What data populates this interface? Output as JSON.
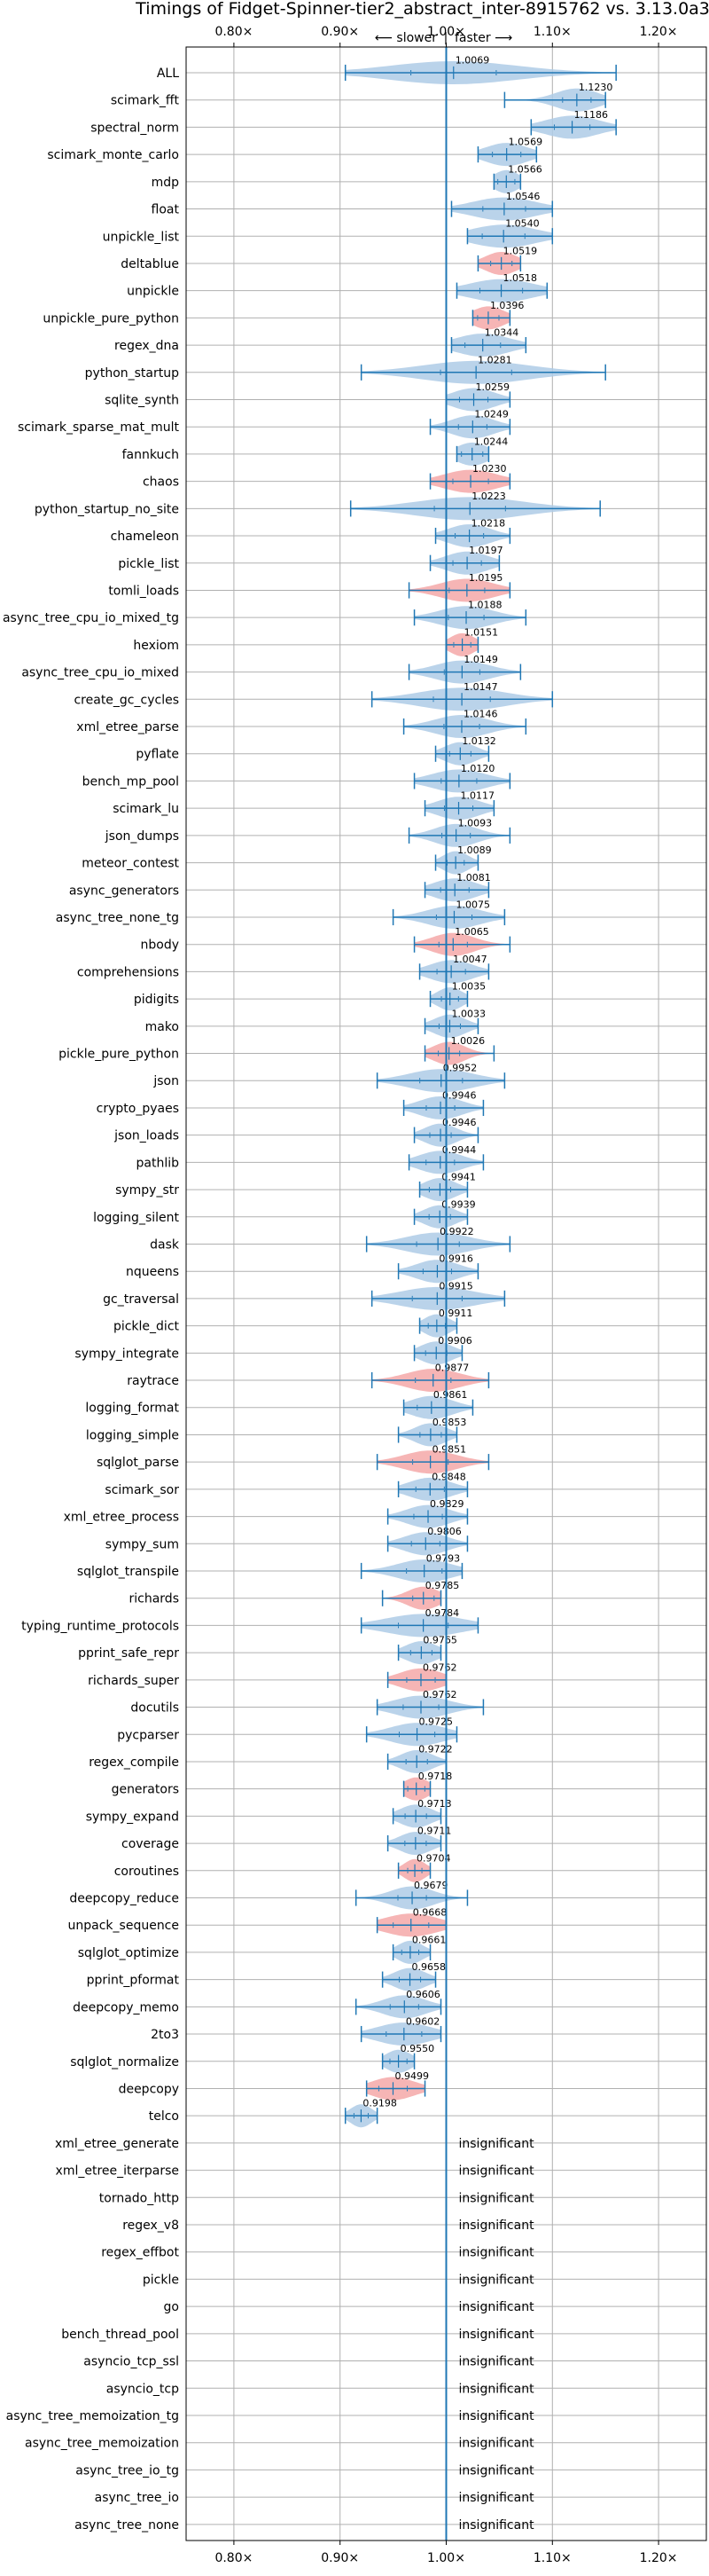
{
  "chart_data": {
    "type": "violin",
    "title": "Timings of Fidget-Spinner-tier2_abstract_inter-8915762 vs. 3.13.0a3+",
    "direction_labels": {
      "left": "⟵ slower",
      "separator": "|",
      "right": "faster ⟶"
    },
    "xlim": [
      0.755,
      1.245
    ],
    "x_ticks": [
      {
        "value": 0.8,
        "label": "0.80×"
      },
      {
        "value": 0.9,
        "label": "0.90×"
      },
      {
        "value": 1.0,
        "label": "1.00×"
      },
      {
        "value": 1.1,
        "label": "1.10×"
      },
      {
        "value": 1.2,
        "label": "1.20×"
      }
    ],
    "grid": true,
    "reference_line": 1.0,
    "colors": {
      "normal": "#aecbe6",
      "highlight": "#f4a8a8",
      "line": "#1f77b4"
    },
    "insignificant_text": "insignificant",
    "benchmarks": [
      {
        "name": "ALL",
        "mean": 1.0069,
        "label": "1.0069",
        "min": 0.905,
        "max": 1.16,
        "spread": 0.06,
        "highlight": false
      },
      {
        "name": "scimark_fft",
        "mean": 1.123,
        "label": "1.1230",
        "min": 1.055,
        "max": 1.15,
        "spread": 0.02,
        "highlight": false
      },
      {
        "name": "spectral_norm",
        "mean": 1.1186,
        "label": "1.1186",
        "min": 1.08,
        "max": 1.16,
        "spread": 0.025,
        "highlight": false
      },
      {
        "name": "scimark_monte_carlo",
        "mean": 1.0569,
        "label": "1.0569",
        "min": 1.03,
        "max": 1.085,
        "spread": 0.02,
        "highlight": false
      },
      {
        "name": "mdp",
        "mean": 1.0566,
        "label": "1.0566",
        "min": 1.045,
        "max": 1.07,
        "spread": 0.012,
        "highlight": false
      },
      {
        "name": "float",
        "mean": 1.0546,
        "label": "1.0546",
        "min": 1.005,
        "max": 1.1,
        "spread": 0.03,
        "highlight": false
      },
      {
        "name": "unpickle_list",
        "mean": 1.054,
        "label": "1.0540",
        "min": 1.02,
        "max": 1.1,
        "spread": 0.03,
        "highlight": false
      },
      {
        "name": "deltablue",
        "mean": 1.0519,
        "label": "1.0519",
        "min": 1.03,
        "max": 1.07,
        "spread": 0.015,
        "highlight": true
      },
      {
        "name": "unpickle",
        "mean": 1.0518,
        "label": "1.0518",
        "min": 1.01,
        "max": 1.095,
        "spread": 0.03,
        "highlight": false
      },
      {
        "name": "unpickle_pure_python",
        "mean": 1.0396,
        "label": "1.0396",
        "min": 1.025,
        "max": 1.06,
        "spread": 0.015,
        "highlight": true
      },
      {
        "name": "regex_dna",
        "mean": 1.0344,
        "label": "1.0344",
        "min": 1.005,
        "max": 1.075,
        "spread": 0.025,
        "highlight": false
      },
      {
        "name": "python_startup",
        "mean": 1.0281,
        "label": "1.0281",
        "min": 0.92,
        "max": 1.15,
        "spread": 0.05,
        "highlight": false
      },
      {
        "name": "sqlite_synth",
        "mean": 1.0259,
        "label": "1.0259",
        "min": 1.0,
        "max": 1.06,
        "spread": 0.02,
        "highlight": false
      },
      {
        "name": "scimark_sparse_mat_mult",
        "mean": 1.0249,
        "label": "1.0249",
        "min": 0.985,
        "max": 1.06,
        "spread": 0.02,
        "highlight": false
      },
      {
        "name": "fannkuch",
        "mean": 1.0244,
        "label": "1.0244",
        "min": 1.01,
        "max": 1.04,
        "spread": 0.015,
        "highlight": false
      },
      {
        "name": "chaos",
        "mean": 1.023,
        "label": "1.0230",
        "min": 0.985,
        "max": 1.06,
        "spread": 0.025,
        "highlight": true
      },
      {
        "name": "python_startup_no_site",
        "mean": 1.0223,
        "label": "1.0223",
        "min": 0.91,
        "max": 1.145,
        "spread": 0.05,
        "highlight": false
      },
      {
        "name": "chameleon",
        "mean": 1.0218,
        "label": "1.0218",
        "min": 0.99,
        "max": 1.06,
        "spread": 0.02,
        "highlight": false
      },
      {
        "name": "pickle_list",
        "mean": 1.0197,
        "label": "1.0197",
        "min": 0.985,
        "max": 1.05,
        "spread": 0.02,
        "highlight": false
      },
      {
        "name": "tomli_loads",
        "mean": 1.0195,
        "label": "1.0195",
        "min": 0.965,
        "max": 1.06,
        "spread": 0.025,
        "highlight": true
      },
      {
        "name": "async_tree_cpu_io_mixed_tg",
        "mean": 1.0188,
        "label": "1.0188",
        "min": 0.97,
        "max": 1.075,
        "spread": 0.025,
        "highlight": false
      },
      {
        "name": "hexiom",
        "mean": 1.0151,
        "label": "1.0151",
        "min": 1.0,
        "max": 1.03,
        "spread": 0.012,
        "highlight": true
      },
      {
        "name": "async_tree_cpu_io_mixed",
        "mean": 1.0149,
        "label": "1.0149",
        "min": 0.965,
        "max": 1.07,
        "spread": 0.025,
        "highlight": false
      },
      {
        "name": "create_gc_cycles",
        "mean": 1.0147,
        "label": "1.0147",
        "min": 0.93,
        "max": 1.1,
        "spread": 0.04,
        "highlight": false
      },
      {
        "name": "xml_etree_parse",
        "mean": 1.0146,
        "label": "1.0146",
        "min": 0.96,
        "max": 1.075,
        "spread": 0.025,
        "highlight": false
      },
      {
        "name": "pyflate",
        "mean": 1.0132,
        "label": "1.0132",
        "min": 0.99,
        "max": 1.04,
        "spread": 0.015,
        "highlight": false
      },
      {
        "name": "bench_mp_pool",
        "mean": 1.012,
        "label": "1.0120",
        "min": 0.97,
        "max": 1.06,
        "spread": 0.025,
        "highlight": false
      },
      {
        "name": "scimark_lu",
        "mean": 1.0117,
        "label": "1.0117",
        "min": 0.98,
        "max": 1.045,
        "spread": 0.02,
        "highlight": false
      },
      {
        "name": "json_dumps",
        "mean": 1.0093,
        "label": "1.0093",
        "min": 0.965,
        "max": 1.06,
        "spread": 0.02,
        "highlight": false
      },
      {
        "name": "meteor_contest",
        "mean": 1.0089,
        "label": "1.0089",
        "min": 0.99,
        "max": 1.03,
        "spread": 0.012,
        "highlight": false
      },
      {
        "name": "async_generators",
        "mean": 1.0081,
        "label": "1.0081",
        "min": 0.98,
        "max": 1.04,
        "spread": 0.02,
        "highlight": false
      },
      {
        "name": "async_tree_none_tg",
        "mean": 1.0075,
        "label": "1.0075",
        "min": 0.95,
        "max": 1.055,
        "spread": 0.025,
        "highlight": false
      },
      {
        "name": "nbody",
        "mean": 1.0065,
        "label": "1.0065",
        "min": 0.97,
        "max": 1.06,
        "spread": 0.02,
        "highlight": true
      },
      {
        "name": "comprehensions",
        "mean": 1.0047,
        "label": "1.0047",
        "min": 0.975,
        "max": 1.04,
        "spread": 0.02,
        "highlight": false
      },
      {
        "name": "pidigits",
        "mean": 1.0035,
        "label": "1.0035",
        "min": 0.985,
        "max": 1.02,
        "spread": 0.012,
        "highlight": false
      },
      {
        "name": "mako",
        "mean": 1.0033,
        "label": "1.0033",
        "min": 0.98,
        "max": 1.03,
        "spread": 0.015,
        "highlight": false
      },
      {
        "name": "pickle_pure_python",
        "mean": 1.0026,
        "label": "1.0026",
        "min": 0.98,
        "max": 1.045,
        "spread": 0.015,
        "highlight": true
      },
      {
        "name": "json",
        "mean": 0.9952,
        "label": "0.9952",
        "min": 0.935,
        "max": 1.055,
        "spread": 0.03,
        "highlight": false
      },
      {
        "name": "crypto_pyaes",
        "mean": 0.9946,
        "label": "0.9946",
        "min": 0.96,
        "max": 1.035,
        "spread": 0.02,
        "highlight": false
      },
      {
        "name": "json_loads",
        "mean": 0.9946,
        "label": "0.9946",
        "min": 0.97,
        "max": 1.03,
        "spread": 0.015,
        "highlight": false
      },
      {
        "name": "pathlib",
        "mean": 0.9944,
        "label": "0.9944",
        "min": 0.965,
        "max": 1.035,
        "spread": 0.02,
        "highlight": false
      },
      {
        "name": "sympy_str",
        "mean": 0.9941,
        "label": "0.9941",
        "min": 0.975,
        "max": 1.02,
        "spread": 0.015,
        "highlight": false
      },
      {
        "name": "logging_silent",
        "mean": 0.9939,
        "label": "0.9939",
        "min": 0.97,
        "max": 1.02,
        "spread": 0.015,
        "highlight": false
      },
      {
        "name": "dask",
        "mean": 0.9922,
        "label": "0.9922",
        "min": 0.925,
        "max": 1.06,
        "spread": 0.03,
        "highlight": false
      },
      {
        "name": "nqueens",
        "mean": 0.9916,
        "label": "0.9916",
        "min": 0.955,
        "max": 1.03,
        "spread": 0.02,
        "highlight": false
      },
      {
        "name": "gc_traversal",
        "mean": 0.9915,
        "label": "0.9915",
        "min": 0.93,
        "max": 1.055,
        "spread": 0.035,
        "highlight": false
      },
      {
        "name": "pickle_dict",
        "mean": 0.9911,
        "label": "0.9911",
        "min": 0.975,
        "max": 1.01,
        "spread": 0.012,
        "highlight": false
      },
      {
        "name": "sympy_integrate",
        "mean": 0.9906,
        "label": "0.9906",
        "min": 0.97,
        "max": 1.015,
        "spread": 0.015,
        "highlight": false
      },
      {
        "name": "raytrace",
        "mean": 0.9877,
        "label": "0.9877",
        "min": 0.93,
        "max": 1.04,
        "spread": 0.025,
        "highlight": true
      },
      {
        "name": "logging_format",
        "mean": 0.9861,
        "label": "0.9861",
        "min": 0.96,
        "max": 1.025,
        "spread": 0.02,
        "highlight": false
      },
      {
        "name": "logging_simple",
        "mean": 0.9853,
        "label": "0.9853",
        "min": 0.955,
        "max": 1.01,
        "spread": 0.015,
        "highlight": false
      },
      {
        "name": "sqlglot_parse",
        "mean": 0.9851,
        "label": "0.9851",
        "min": 0.935,
        "max": 1.04,
        "spread": 0.025,
        "highlight": true
      },
      {
        "name": "scimark_sor",
        "mean": 0.9848,
        "label": "0.9848",
        "min": 0.955,
        "max": 1.02,
        "spread": 0.02,
        "highlight": false
      },
      {
        "name": "xml_etree_process",
        "mean": 0.9829,
        "label": "0.9829",
        "min": 0.945,
        "max": 1.02,
        "spread": 0.02,
        "highlight": false
      },
      {
        "name": "sympy_sum",
        "mean": 0.9806,
        "label": "0.9806",
        "min": 0.945,
        "max": 1.02,
        "spread": 0.02,
        "highlight": false
      },
      {
        "name": "sqlglot_transpile",
        "mean": 0.9793,
        "label": "0.9793",
        "min": 0.92,
        "max": 1.015,
        "spread": 0.025,
        "highlight": false
      },
      {
        "name": "richards",
        "mean": 0.9785,
        "label": "0.9785",
        "min": 0.94,
        "max": 0.995,
        "spread": 0.015,
        "highlight": true
      },
      {
        "name": "typing_runtime_protocols",
        "mean": 0.9784,
        "label": "0.9784",
        "min": 0.92,
        "max": 1.03,
        "spread": 0.035,
        "highlight": false
      },
      {
        "name": "pprint_safe_repr",
        "mean": 0.9765,
        "label": "0.9765",
        "min": 0.955,
        "max": 0.995,
        "spread": 0.015,
        "highlight": false
      },
      {
        "name": "richards_super",
        "mean": 0.9762,
        "label": "0.9762",
        "min": 0.945,
        "max": 1.0,
        "spread": 0.02,
        "highlight": true
      },
      {
        "name": "docutils",
        "mean": 0.9762,
        "label": "0.9762",
        "min": 0.935,
        "max": 1.035,
        "spread": 0.025,
        "highlight": false
      },
      {
        "name": "pycparser",
        "mean": 0.9725,
        "label": "0.9725",
        "min": 0.925,
        "max": 1.01,
        "spread": 0.025,
        "highlight": false
      },
      {
        "name": "regex_compile",
        "mean": 0.9722,
        "label": "0.9722",
        "min": 0.945,
        "max": 1.0,
        "spread": 0.015,
        "highlight": false
      },
      {
        "name": "generators",
        "mean": 0.9718,
        "label": "0.9718",
        "min": 0.96,
        "max": 0.985,
        "spread": 0.012,
        "highlight": true
      },
      {
        "name": "sympy_expand",
        "mean": 0.9713,
        "label": "0.9713",
        "min": 0.95,
        "max": 0.995,
        "spread": 0.015,
        "highlight": false
      },
      {
        "name": "coverage",
        "mean": 0.9711,
        "label": "0.9711",
        "min": 0.945,
        "max": 0.995,
        "spread": 0.015,
        "highlight": false
      },
      {
        "name": "coroutines",
        "mean": 0.9704,
        "label": "0.9704",
        "min": 0.955,
        "max": 0.985,
        "spread": 0.01,
        "highlight": true
      },
      {
        "name": "deepcopy_reduce",
        "mean": 0.9679,
        "label": "0.9679",
        "min": 0.915,
        "max": 1.02,
        "spread": 0.02,
        "highlight": false
      },
      {
        "name": "unpack_sequence",
        "mean": 0.9668,
        "label": "0.9668",
        "min": 0.935,
        "max": 1.0,
        "spread": 0.025,
        "highlight": true
      },
      {
        "name": "sqlglot_optimize",
        "mean": 0.9661,
        "label": "0.9661",
        "min": 0.95,
        "max": 0.985,
        "spread": 0.012,
        "highlight": false
      },
      {
        "name": "pprint_pformat",
        "mean": 0.9658,
        "label": "0.9658",
        "min": 0.94,
        "max": 0.99,
        "spread": 0.015,
        "highlight": false
      },
      {
        "name": "deepcopy_memo",
        "mean": 0.9606,
        "label": "0.9606",
        "min": 0.915,
        "max": 0.995,
        "spread": 0.02,
        "highlight": false
      },
      {
        "name": "2to3",
        "mean": 0.9602,
        "label": "0.9602",
        "min": 0.92,
        "max": 0.995,
        "spread": 0.025,
        "highlight": false
      },
      {
        "name": "sqlglot_normalize",
        "mean": 0.955,
        "label": "0.9550",
        "min": 0.94,
        "max": 0.97,
        "spread": 0.012,
        "highlight": false
      },
      {
        "name": "deepcopy",
        "mean": 0.9499,
        "label": "0.9499",
        "min": 0.925,
        "max": 0.98,
        "spread": 0.02,
        "highlight": true
      },
      {
        "name": "telco",
        "mean": 0.9198,
        "label": "0.9198",
        "min": 0.905,
        "max": 0.935,
        "spread": 0.01,
        "highlight": false
      },
      {
        "name": "xml_etree_generate",
        "insignificant": true
      },
      {
        "name": "xml_etree_iterparse",
        "insignificant": true
      },
      {
        "name": "tornado_http",
        "insignificant": true
      },
      {
        "name": "regex_v8",
        "insignificant": true
      },
      {
        "name": "regex_effbot",
        "insignificant": true
      },
      {
        "name": "pickle",
        "insignificant": true
      },
      {
        "name": "go",
        "insignificant": true
      },
      {
        "name": "bench_thread_pool",
        "insignificant": true
      },
      {
        "name": "asyncio_tcp_ssl",
        "insignificant": true
      },
      {
        "name": "asyncio_tcp",
        "insignificant": true
      },
      {
        "name": "async_tree_memoization_tg",
        "insignificant": true
      },
      {
        "name": "async_tree_memoization",
        "insignificant": true
      },
      {
        "name": "async_tree_io_tg",
        "insignificant": true
      },
      {
        "name": "async_tree_io",
        "insignificant": true
      },
      {
        "name": "async_tree_none",
        "insignificant": true
      }
    ]
  }
}
